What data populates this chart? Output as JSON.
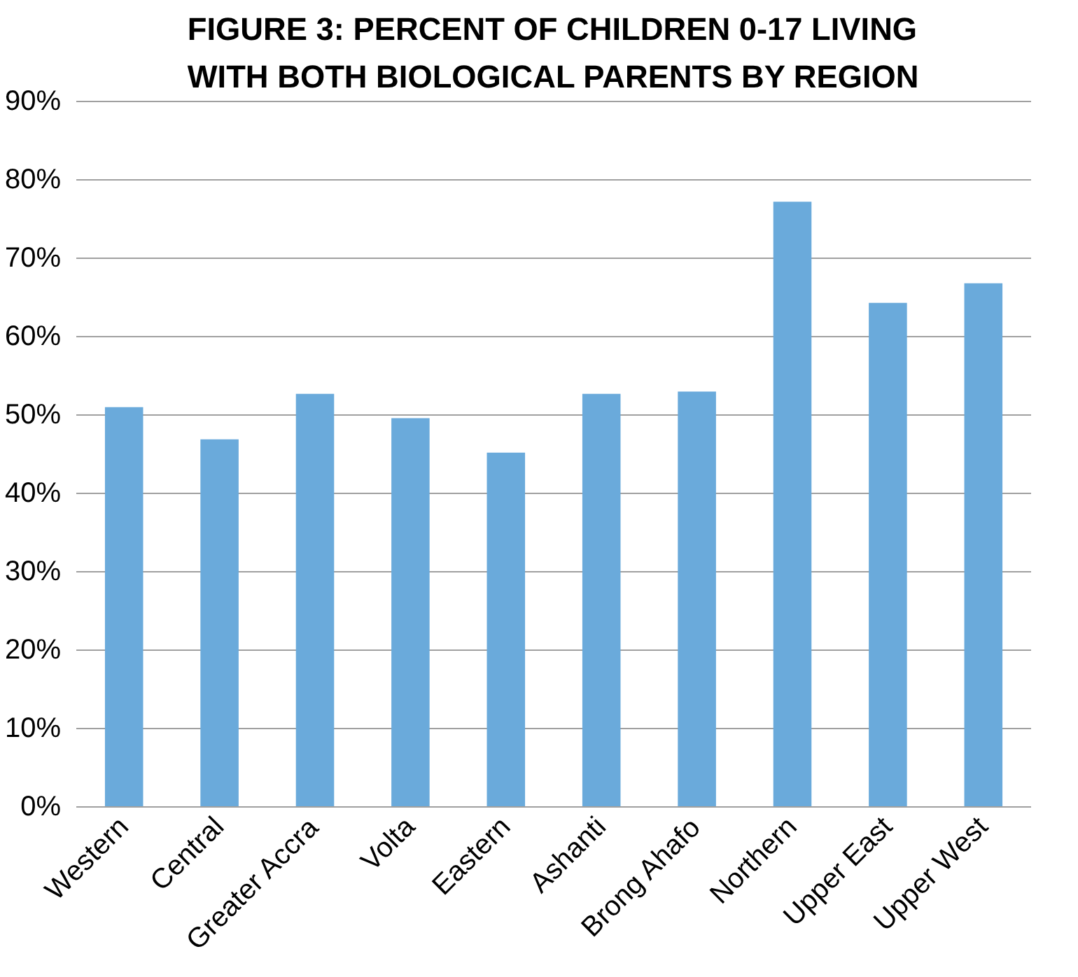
{
  "chart_data": {
    "type": "bar",
    "title": "FIGURE 3: PERCENT OF CHILDREN 0-17 LIVING\nWITH BOTH BIOLOGICAL PARENTS BY REGION",
    "categories": [
      "Western",
      "Central",
      "Greater Accra",
      "Volta",
      "Eastern",
      "Ashanti",
      "Brong Ahafo",
      "Northern",
      "Upper East",
      "Upper West"
    ],
    "values": [
      51.0,
      46.9,
      52.7,
      49.6,
      45.2,
      52.7,
      53.0,
      77.2,
      64.3,
      66.8
    ],
    "color": "#6aaadb",
    "ylim": [
      0,
      90
    ],
    "yticks": [
      {
        "value": 0,
        "label": "0%"
      },
      {
        "value": 10,
        "label": "10%"
      },
      {
        "value": 20,
        "label": "20%"
      },
      {
        "value": 30,
        "label": "30%"
      },
      {
        "value": 40,
        "label": "40%"
      },
      {
        "value": 50,
        "label": "50%"
      },
      {
        "value": 60,
        "label": "60%"
      },
      {
        "value": 70,
        "label": "70%"
      },
      {
        "value": 80,
        "label": "80%"
      },
      {
        "value": 90,
        "label": "90%"
      }
    ],
    "grid": "y"
  }
}
